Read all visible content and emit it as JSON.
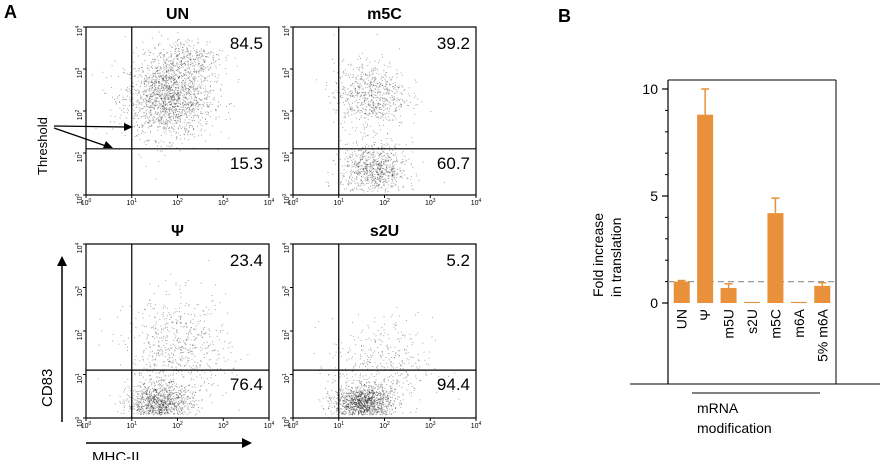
{
  "panel_labels": {
    "a": "A",
    "b": "B"
  },
  "flow": {
    "tick_labels": [
      "10",
      "10",
      "10",
      "10",
      "10"
    ],
    "tick_exponents": [
      "0",
      "1",
      "2",
      "3",
      "4"
    ],
    "plots": [
      {
        "title": "UN",
        "upper_value": "84.5",
        "lower_value": "15.3",
        "population": "upper"
      },
      {
        "title": "m5C",
        "upper_value": "39.2",
        "lower_value": "60.7",
        "population": "split"
      },
      {
        "title": "Ψ",
        "upper_value": "23.4",
        "lower_value": "76.4",
        "population": "lower"
      },
      {
        "title": "s2U",
        "upper_value": "5.2",
        "lower_value": "94.4",
        "population": "lower_tight"
      }
    ],
    "y_axis_label": "CD83",
    "x_axis_label": "MHC-II",
    "threshold_label": "Threshold"
  },
  "chart_data": {
    "type": "bar",
    "categories": [
      "UN",
      "Ψ",
      "m5U",
      "s2U",
      "m5C",
      "m6A",
      "5% m6A"
    ],
    "values": [
      1.0,
      8.8,
      0.7,
      0.05,
      4.2,
      0.05,
      0.8
    ],
    "errors": [
      0.05,
      1.2,
      0.2,
      0.0,
      0.7,
      0.0,
      0.15
    ],
    "ylim": [
      0,
      10.5
    ],
    "yticks": [
      "0",
      "5",
      "10"
    ],
    "ytick_values": [
      0,
      5,
      10
    ],
    "reference_line": 1,
    "ylabel_line1": "Fold increase",
    "ylabel_line2": "in translation",
    "xlabel_line1": "mRNA",
    "xlabel_line2": "modification",
    "bar_color": "#e8913a",
    "reference_line_color": "#999999"
  }
}
